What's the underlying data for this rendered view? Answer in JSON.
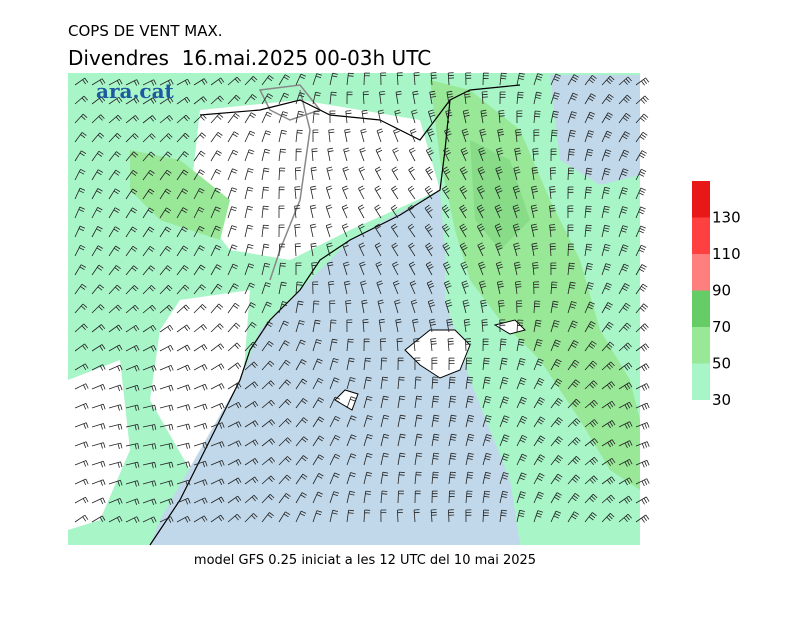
{
  "header": {
    "title": "COPS DE VENT MAX.",
    "subtitle": "Divendres  16.mai.2025 00-03h UTC"
  },
  "logo": "ara.cat",
  "footer": "model GFS 0.25 iniciat a les 12 UTC del 10 mai 2025",
  "legend": {
    "levels": [
      30,
      50,
      70,
      90,
      110,
      130
    ],
    "colors": [
      "#a8f5c8",
      "#98e898",
      "#66cc66",
      "#ff7f7f",
      "#ff4040",
      "#e81818"
    ]
  }
}
